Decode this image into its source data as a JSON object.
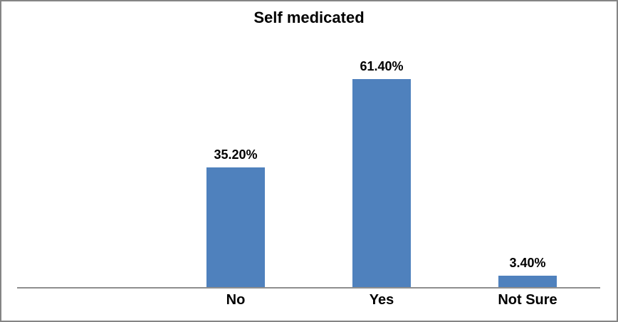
{
  "frame": {
    "border_color": "#858585",
    "background": "#FFFFFF"
  },
  "chart_data": {
    "type": "bar",
    "title": "Self medicated",
    "categories": [
      "No",
      "Yes",
      "Not Sure"
    ],
    "values": [
      35.2,
      61.4,
      3.4
    ],
    "value_labels": [
      "35.20%",
      "61.40%",
      "3.40%"
    ],
    "xlabel": "",
    "ylabel": "",
    "ylim": [
      0,
      70
    ],
    "grid": false,
    "legend": "none",
    "y_axis_visible": false,
    "x_axis_visible": true,
    "bar_color": "#4F81BD",
    "axis_line_color": "#8E8E8E",
    "text_color": "#000000"
  }
}
